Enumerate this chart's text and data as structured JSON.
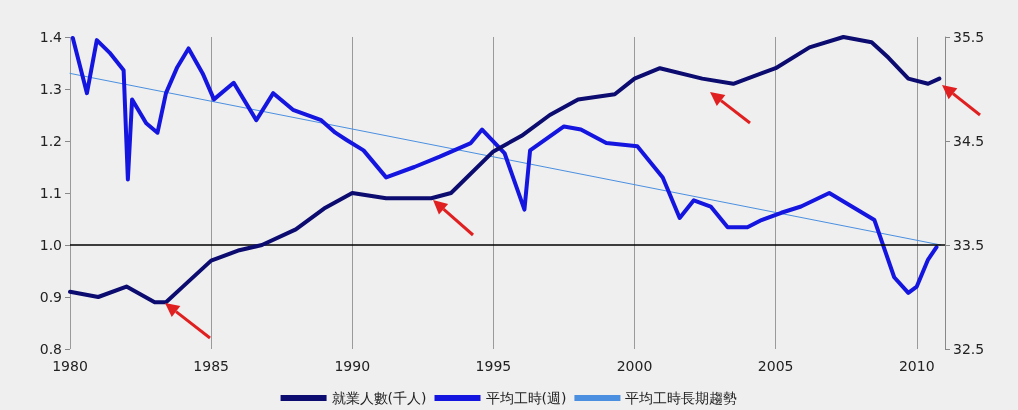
{
  "chart_data": {
    "type": "line",
    "xlim": [
      1980,
      2011
    ],
    "xticks": [
      1980,
      1985,
      1990,
      1995,
      2000,
      2005,
      2010
    ],
    "ylim": [
      0.8,
      1.4
    ],
    "yticks": [
      0.8,
      0.9,
      {
        "value": 1,
        "label": "1.0"
      },
      1.1,
      1.2,
      1.3,
      1.4
    ],
    "y2lim": [
      32.5,
      35.5
    ],
    "y2ticks": [
      32.5,
      33.5,
      34.5,
      35.5
    ],
    "grid": "x",
    "legend": "bottom",
    "marker": "none",
    "line_style": "solid",
    "ref_lines": [
      {
        "axis": "y",
        "value": 1.0,
        "color": "#000000"
      }
    ],
    "series": [
      {
        "name": "就業人數(千人)",
        "color": "#0b0b70",
        "x": [
          1980,
          1981,
          1982,
          1983,
          1983.4,
          1984,
          1985,
          1986,
          1986.8,
          1988,
          1989,
          1990,
          1991.2,
          1992.8,
          1993.5,
          1995,
          1996,
          1997,
          1998,
          1999.3,
          2000,
          2000.9,
          2002.4,
          2003.5,
          2005,
          2006.2,
          2007.4,
          2008.4,
          2009,
          2009.7,
          2010.4,
          2010.8
        ],
        "values": [
          0.91,
          0.9,
          0.92,
          0.89,
          0.89,
          0.92,
          0.97,
          0.99,
          1.0,
          1.03,
          1.07,
          1.1,
          1.09,
          1.09,
          1.1,
          1.18,
          1.21,
          1.25,
          1.28,
          1.29,
          1.32,
          1.34,
          1.32,
          1.31,
          1.34,
          1.38,
          1.4,
          1.39,
          1.36,
          1.32,
          1.31,
          1.32
        ]
      },
      {
        "name": "平均工時(週)",
        "color": "#1515e0",
        "axis": "y2",
        "x": [
          1980.1,
          1980.6,
          1980.95,
          1981.4,
          1981.9,
          1982.05,
          1982.2,
          1982.7,
          1983.1,
          1983.4,
          1983.8,
          1984.2,
          1984.7,
          1985.1,
          1985.8,
          1986.6,
          1987.2,
          1987.9,
          1988.9,
          1989.4,
          1989.8,
          1990.4,
          1991.2,
          1992.2,
          1993.1,
          1994.2,
          1994.6,
          1995.4,
          1996.1,
          1996.3,
          1997.5,
          1998.1,
          1999,
          2000.1,
          2001,
          2001.6,
          2002.1,
          2002.7,
          2003.3,
          2004,
          2004.5,
          2005.2,
          2005.9,
          2006.9,
          2007.7,
          2008.5,
          2009.2,
          2009.7,
          2010,
          2010.4,
          2010.7
        ],
        "values": [
          35.49,
          34.96,
          35.47,
          35.35,
          35.18,
          34.13,
          34.9,
          34.67,
          34.58,
          34.96,
          35.21,
          35.39,
          35.15,
          34.9,
          35.06,
          34.7,
          34.96,
          34.8,
          34.7,
          34.58,
          34.51,
          34.41,
          34.15,
          34.25,
          34.35,
          34.48,
          34.61,
          34.38,
          33.84,
          34.41,
          34.64,
          34.61,
          34.48,
          34.45,
          34.15,
          33.76,
          33.93,
          33.87,
          33.67,
          33.67,
          33.74,
          33.81,
          33.87,
          34.0,
          33.87,
          33.74,
          33.19,
          33.04,
          33.1,
          33.36,
          33.48
        ]
      },
      {
        "name": "平均工時長期趨勢",
        "color": "#4a8fe0",
        "axis": "y2",
        "x": [
          1980,
          2010.85
        ],
        "values": [
          35.15,
          33.5
        ]
      }
    ]
  }
}
